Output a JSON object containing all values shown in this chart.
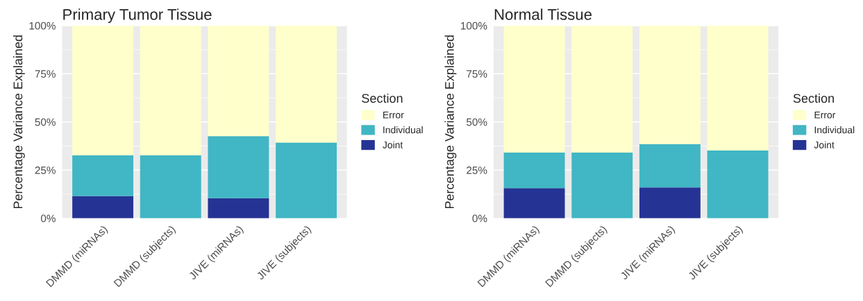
{
  "chart_data": [
    {
      "type": "bar",
      "title": "Primary Tumor Tissue",
      "ylabel": "Percentage Variance Explained",
      "legend_title": "Section",
      "stacked": true,
      "legend": "right",
      "grid": true,
      "categories": [
        "DMMD (miRNAs)",
        "DMMD (subjects)",
        "JIVE (miRNAs)",
        "JIVE (subjects)"
      ],
      "ylim": [
        0,
        100
      ],
      "yticks": [
        {
          "value": 0,
          "label": "0%"
        },
        {
          "value": 25,
          "label": "25%"
        },
        {
          "value": 50,
          "label": "50%"
        },
        {
          "value": 75,
          "label": "75%"
        },
        {
          "value": 100,
          "label": "100%"
        }
      ],
      "series": [
        {
          "name": "Joint",
          "color": "#253494",
          "values": [
            11.5,
            0,
            10.4,
            0
          ]
        },
        {
          "name": "Individual",
          "color": "#41b6c4",
          "values": [
            21.1,
            32.6,
            32.2,
            39.3
          ]
        },
        {
          "name": "Error",
          "color": "#ffffcc",
          "values": [
            67.4,
            67.4,
            57.4,
            60.7
          ]
        }
      ]
    },
    {
      "type": "bar",
      "title": "Normal Tissue",
      "ylabel": "Percentage Variance Explained",
      "legend_title": "Section",
      "stacked": true,
      "legend": "right",
      "grid": true,
      "categories": [
        "DMMD (miRNAs)",
        "DMMD (subjects)",
        "JIVE (miRNAs)",
        "JIVE (subjects)"
      ],
      "ylim": [
        0,
        100
      ],
      "yticks": [
        {
          "value": 0,
          "label": "0%"
        },
        {
          "value": 25,
          "label": "25%"
        },
        {
          "value": 50,
          "label": "50%"
        },
        {
          "value": 75,
          "label": "75%"
        },
        {
          "value": 100,
          "label": "100%"
        }
      ],
      "series": [
        {
          "name": "Joint",
          "color": "#253494",
          "values": [
            15.6,
            0,
            16.0,
            0
          ]
        },
        {
          "name": "Individual",
          "color": "#41b6c4",
          "values": [
            18.5,
            34.1,
            22.5,
            35.2
          ]
        },
        {
          "name": "Error",
          "color": "#ffffcc",
          "values": [
            65.9,
            65.9,
            61.5,
            64.8
          ]
        }
      ]
    }
  ]
}
